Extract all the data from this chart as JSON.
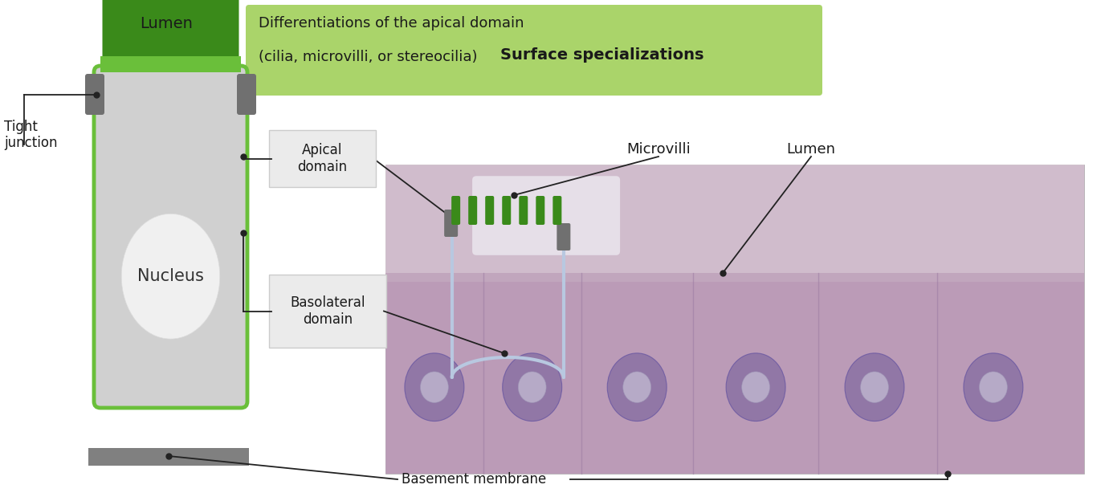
{
  "bg_color": "#ffffff",
  "cell_color": "#d0d0d0",
  "cell_border_color": "#6abf3a",
  "cilia_color": "#3a8a1a",
  "cilia_base_color": "#6abf3a",
  "junction_color": "#707070",
  "nucleus_color": "#f0f0f0",
  "basement_color": "#808080",
  "green_box_color": "#aad46a",
  "annotation_line_color": "#222222",
  "title_line1": "Differentiations of the apical domain",
  "title_line2": "(cilia, microvilli, or stereocilia)",
  "surface_spec": "Surface specializations",
  "lumen_label": "Lumen",
  "tight_junction_label": "Tight\njunction",
  "nucleus_label": "Nucleus",
  "apical_label": "Apical\ndomain",
  "basolateral_label": "Basolateral\ndomain",
  "basement_label": "Basement membrane",
  "microvilli_label": "Microvilli",
  "lumen2_label": "Lumen",
  "img_bg_color": "#c8a8bc",
  "img_pink_color": "#c0a0b8",
  "img_mauve_color": "#b898b0",
  "img_lumen_color": "#e8dce8",
  "cell_outline_color": "#d0d8e8",
  "overlay_mv_color": "#3a8a1a"
}
